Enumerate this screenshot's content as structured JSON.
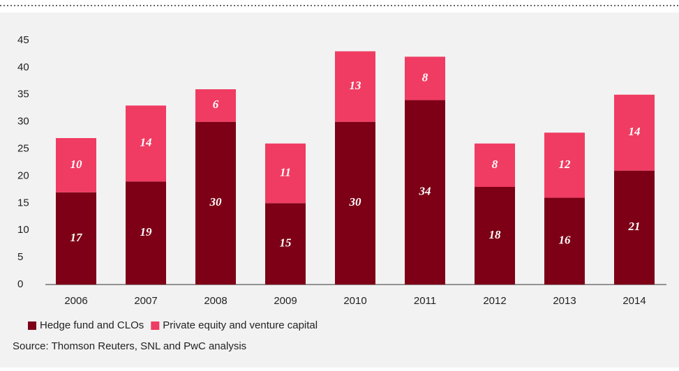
{
  "chart_data": {
    "type": "stacked-bar",
    "categories": [
      "2006",
      "2007",
      "2008",
      "2009",
      "2010",
      "2011",
      "2012",
      "2013",
      "2014"
    ],
    "series": [
      {
        "name": "Hedge fund and CLOs",
        "color": "#7d0016",
        "values": [
          17,
          19,
          30,
          15,
          30,
          34,
          18,
          16,
          21
        ]
      },
      {
        "name": "Private equity and venture capital",
        "color": "#f03c62",
        "values": [
          10,
          14,
          6,
          11,
          13,
          8,
          8,
          12,
          14
        ]
      }
    ],
    "ylim": [
      0,
      45
    ],
    "yticks": [
      0,
      5,
      10,
      15,
      20,
      25,
      30,
      35,
      40,
      45
    ],
    "grid": false,
    "source": "Source: Thomson Reuters, SNL and PwC analysis"
  }
}
